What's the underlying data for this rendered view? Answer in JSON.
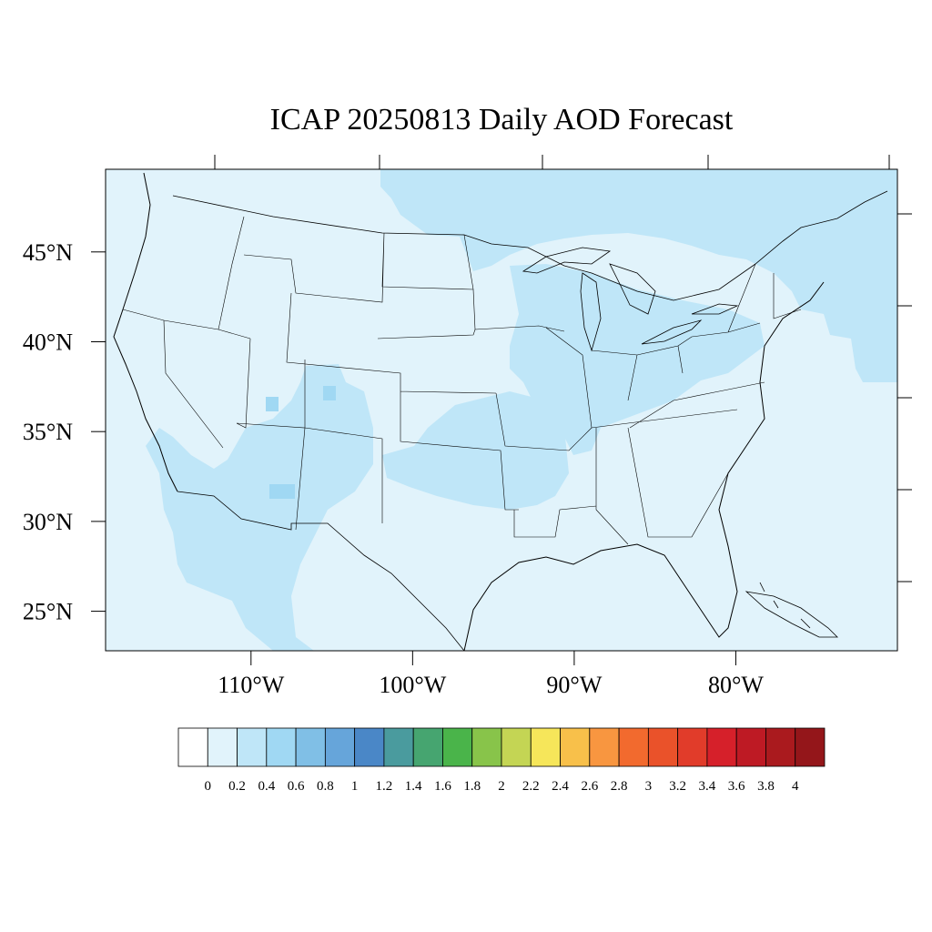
{
  "title": "ICAP 20250813 Daily AOD Forecast",
  "map": {
    "lon_range": [
      -119,
      -70
    ],
    "lat_range": [
      22.8,
      49.6
    ],
    "lat_ticks": [
      {
        "value": 45,
        "label": "45°N"
      },
      {
        "value": 40,
        "label": "40°N"
      },
      {
        "value": 35,
        "label": "35°N"
      },
      {
        "value": 30,
        "label": "30°N"
      },
      {
        "value": 25,
        "label": "25°N"
      }
    ],
    "lon_ticks": [
      {
        "value": -110,
        "label": "110°W"
      },
      {
        "value": -100,
        "label": "100°W"
      },
      {
        "value": -90,
        "label": "90°W"
      },
      {
        "value": -80,
        "label": "80°W"
      }
    ],
    "background_aod_level": "0.2-0.4",
    "colors": {
      "level_0_2": "#e1f3fb",
      "level_2_4": "#bfe6f8",
      "level_4_6": "#a0d8f3",
      "border": "#000000"
    }
  },
  "colorbar": {
    "colors": [
      "#ffffff",
      "#e1f3fb",
      "#bfe6f8",
      "#a0d8f3",
      "#80bfe6",
      "#66a5da",
      "#4a87c7",
      "#4a9b9e",
      "#46a570",
      "#4ab44a",
      "#88c44a",
      "#c4d554",
      "#f6e65a",
      "#f8c04a",
      "#f89640",
      "#f26a2e",
      "#ea522a",
      "#e13c2a",
      "#d6202a",
      "#be1a24",
      "#aa1a1e",
      "#94161a"
    ],
    "labels": [
      "0",
      "0.2",
      "0.4",
      "0.6",
      "0.8",
      "1",
      "1.2",
      "1.4",
      "1.6",
      "1.8",
      "2",
      "2.2",
      "2.4",
      "2.6",
      "2.8",
      "3",
      "3.2",
      "3.4",
      "3.6",
      "3.8",
      "4"
    ]
  }
}
